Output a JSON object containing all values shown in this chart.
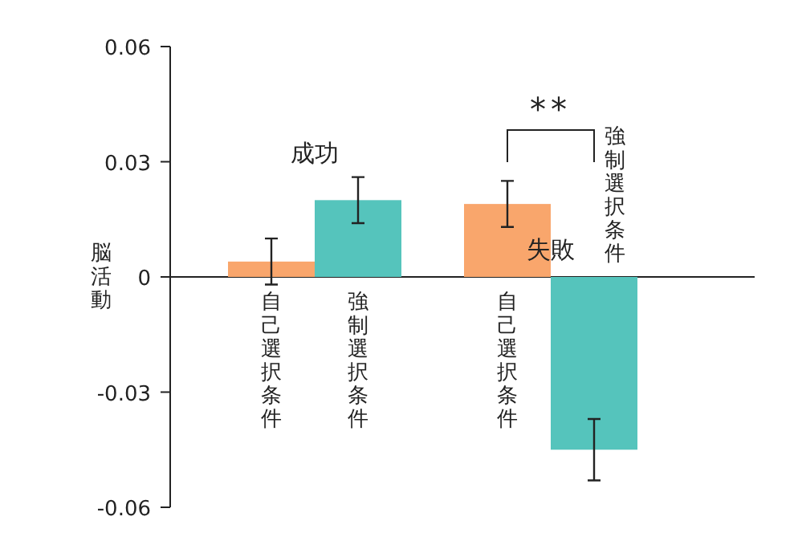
{
  "chart_data": {
    "type": "bar",
    "ylabel": "脳活動",
    "categories": [
      "成功",
      "失敗"
    ],
    "series": [
      {
        "name": "自己選択条件",
        "color": "#f9a66c",
        "values": [
          0.004,
          0.019
        ],
        "errors": [
          0.006,
          0.006
        ]
      },
      {
        "name": "強制選択条件",
        "color": "#55c4bc",
        "values": [
          0.02,
          -0.045
        ],
        "errors": [
          0.006,
          0.008
        ]
      }
    ],
    "ylim": [
      -0.06,
      0.06
    ],
    "yticks": [
      -0.06,
      -0.03,
      0,
      0.03,
      0.06
    ],
    "annotations": [
      "**"
    ]
  }
}
